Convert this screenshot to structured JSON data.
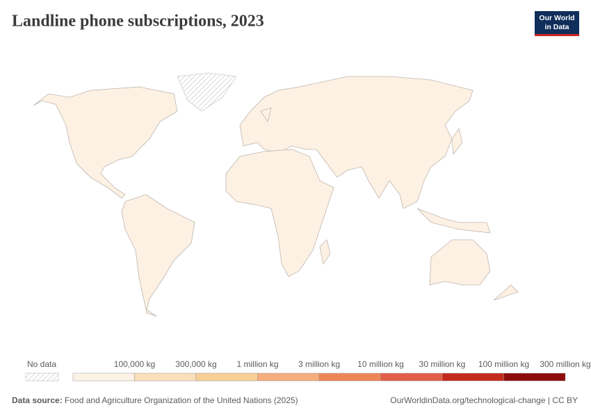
{
  "header": {
    "title": "Landline phone subscriptions, 2023",
    "logo": [
      "Our World",
      "in Data"
    ]
  },
  "legend": {
    "no_data": "No data",
    "bins": [
      {
        "color": "#fdf2e6",
        "label": null
      },
      {
        "color": "#f9dfba",
        "label": "100,000 kg"
      },
      {
        "color": "#f9cf97",
        "label": "300,000 kg"
      },
      {
        "color": "#f5ad7c",
        "label": "1 million kg"
      },
      {
        "color": "#ee8657",
        "label": "3 million kg"
      },
      {
        "color": "#e25f48",
        "label": "10 million kg"
      },
      {
        "color": "#c42a1c",
        "label": "30 million kg"
      },
      {
        "color": "#8e0b0b",
        "label": "100 million kg"
      }
    ],
    "last_label": "300 million kg"
  },
  "footer": {
    "source_label": "Data source:",
    "source": "Food and Agriculture Organization of the United Nations (2025)",
    "url": "OurWorldinData.org/technological-change | CC BY"
  }
}
